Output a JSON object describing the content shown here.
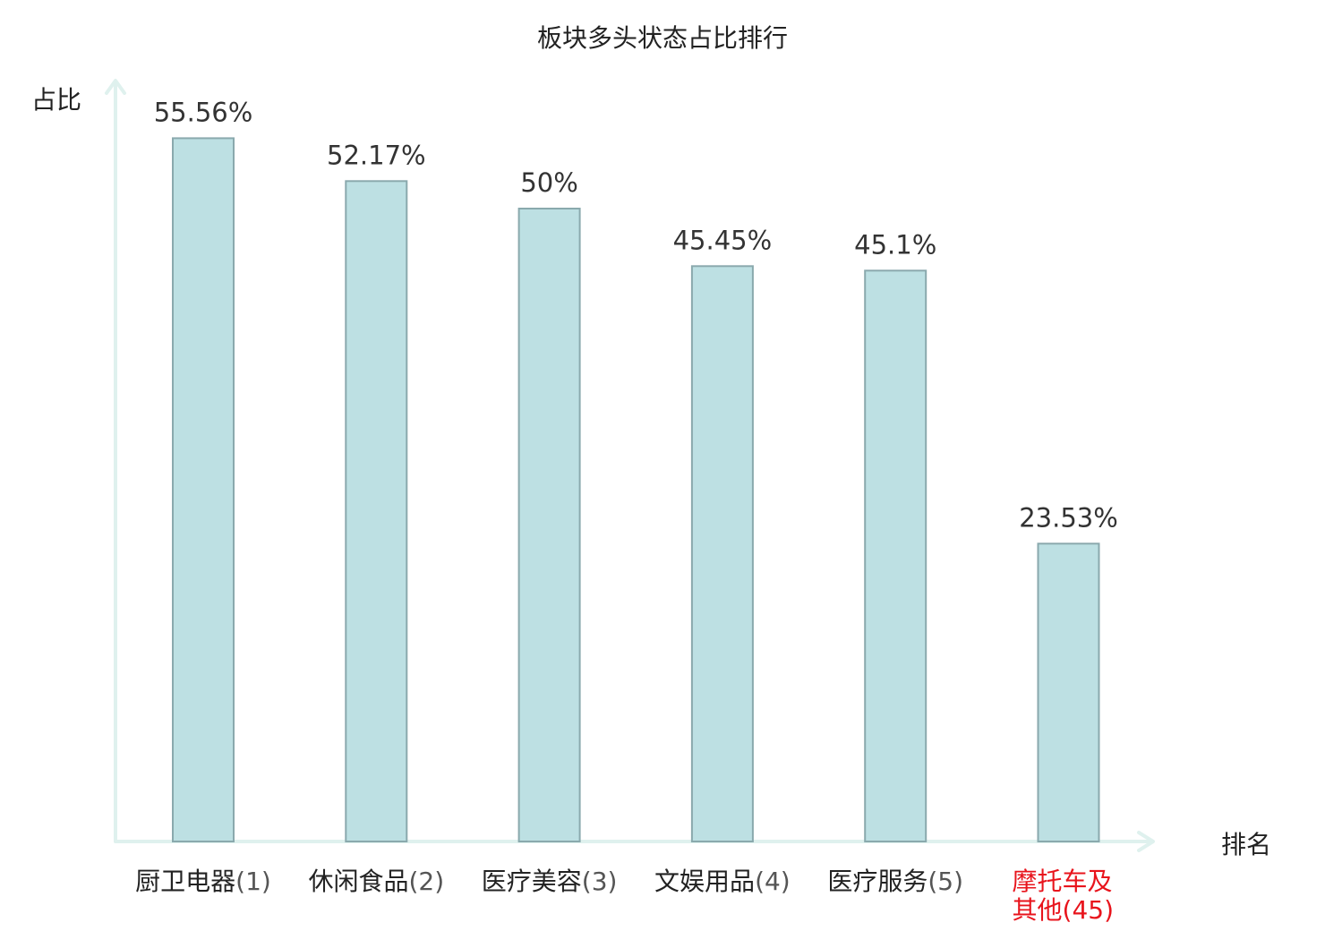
{
  "chart_data": {
    "type": "bar",
    "title": "板块多头状态占比排行",
    "ylabel": "占比",
    "xlabel": "排名",
    "ylim": [
      0,
      60
    ],
    "grid": false,
    "categories": [
      {
        "name": "厨卫电器",
        "rank": "(1)",
        "value": 55.56,
        "label": "55.56%",
        "highlight": false
      },
      {
        "name": "休闲食品",
        "rank": "(2)",
        "value": 52.17,
        "label": "52.17%",
        "highlight": false
      },
      {
        "name": "医疗美容",
        "rank": "(3)",
        "value": 50,
        "label": "50%",
        "highlight": false
      },
      {
        "name": "文娱用品",
        "rank": "(4)",
        "value": 45.45,
        "label": "45.45%",
        "highlight": false
      },
      {
        "name": "医疗服务",
        "rank": "(5)",
        "value": 45.1,
        "label": "45.1%",
        "highlight": false
      },
      {
        "name": "摩托车及其他",
        "name_lines": [
          "摩托车及",
          "其他"
        ],
        "rank": "(45)",
        "value": 23.53,
        "label": "23.53%",
        "highlight": true
      }
    ],
    "colors": {
      "bar_fill": "#bde0e3",
      "bar_stroke": "#8aa9ad",
      "axis": "#dff1ee",
      "text": "#222222",
      "rank_text": "#555555",
      "highlight": "#e8141c"
    }
  }
}
